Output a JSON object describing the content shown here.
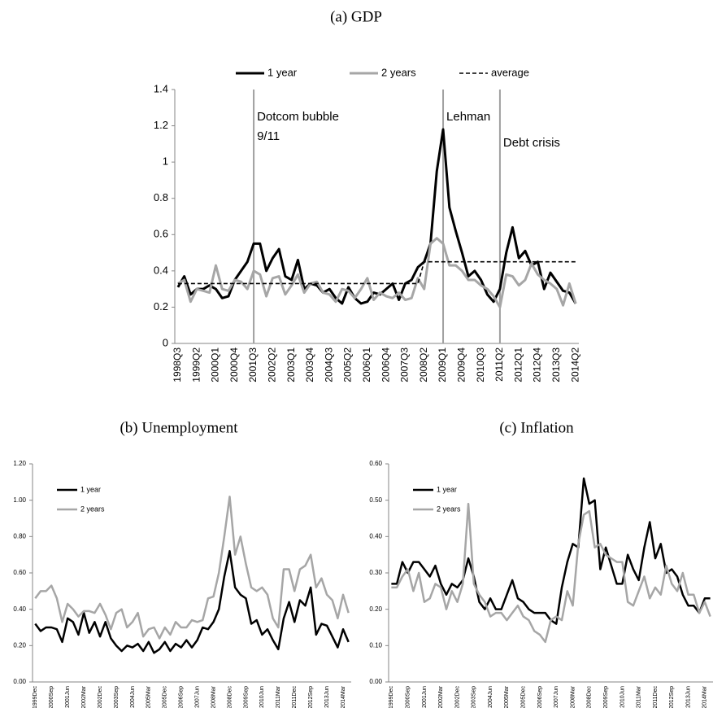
{
  "chart_data": [
    {
      "type": "line",
      "title": "(a) GDP",
      "legend": "top",
      "categories": [
        "1998Q3",
        null,
        null,
        "1999Q2",
        null,
        null,
        "2000Q1",
        null,
        null,
        "2000Q4",
        null,
        null,
        "2001Q3",
        null,
        null,
        "2002Q2",
        null,
        null,
        "2003Q1",
        null,
        null,
        "2003Q4",
        null,
        null,
        "2004Q3",
        null,
        null,
        "2005Q2",
        null,
        null,
        "2006Q1",
        null,
        null,
        "2006Q4",
        null,
        null,
        "2007Q3",
        null,
        null,
        "2008Q2",
        null,
        null,
        "2009Q1",
        null,
        null,
        "2009Q4",
        null,
        null,
        "2010Q3",
        null,
        null,
        "2011Q2",
        null,
        null,
        "2012Q1",
        null,
        null,
        "2012Q4",
        null,
        null,
        "2013Q3",
        null,
        null,
        "2014Q2"
      ],
      "series": [
        {
          "name": "1 year",
          "color": "#000000",
          "values": [
            0.31,
            0.37,
            0.27,
            0.3,
            0.3,
            0.32,
            0.3,
            0.25,
            0.26,
            0.35,
            0.4,
            0.45,
            0.55,
            0.55,
            0.4,
            0.47,
            0.52,
            0.37,
            0.35,
            0.46,
            0.3,
            0.33,
            0.32,
            0.28,
            0.3,
            0.25,
            0.22,
            0.31,
            0.25,
            0.22,
            0.23,
            0.28,
            0.27,
            0.3,
            0.33,
            0.24,
            0.33,
            0.35,
            0.42,
            0.45,
            0.55,
            0.95,
            1.18,
            0.75,
            0.62,
            0.5,
            0.37,
            0.4,
            0.35,
            0.27,
            0.23,
            0.3,
            0.5,
            0.64,
            0.47,
            0.51,
            0.43,
            0.45,
            0.3,
            0.39,
            0.34,
            0.29,
            0.28,
            0.22
          ]
        },
        {
          "name": "2 years",
          "color": "#a6a6a6",
          "values": [
            0.33,
            0.35,
            0.23,
            0.3,
            0.29,
            0.28,
            0.43,
            0.3,
            0.29,
            0.35,
            0.34,
            0.3,
            0.4,
            0.38,
            0.26,
            0.36,
            0.37,
            0.27,
            0.32,
            0.38,
            0.28,
            0.33,
            0.34,
            0.28,
            0.27,
            0.23,
            0.3,
            0.29,
            0.25,
            0.3,
            0.36,
            0.24,
            0.28,
            0.26,
            0.25,
            0.28,
            0.24,
            0.25,
            0.36,
            0.3,
            0.55,
            0.58,
            0.55,
            0.43,
            0.43,
            0.4,
            0.35,
            0.35,
            0.32,
            0.3,
            0.26,
            0.2,
            0.38,
            0.37,
            0.32,
            0.35,
            0.44,
            0.38,
            0.35,
            0.33,
            0.3,
            0.21,
            0.33,
            0.22
          ]
        },
        {
          "name": "average",
          "color": "#000000",
          "dash": true,
          "values": [
            0.33,
            0.33,
            0.33,
            0.33,
            0.33,
            0.33,
            0.33,
            0.33,
            0.33,
            0.33,
            0.33,
            0.33,
            0.33,
            0.33,
            0.33,
            0.33,
            0.33,
            0.33,
            0.33,
            0.33,
            0.33,
            0.33,
            0.33,
            0.33,
            0.33,
            0.33,
            0.33,
            0.33,
            0.33,
            0.33,
            0.33,
            0.33,
            0.33,
            0.33,
            0.33,
            0.33,
            0.33,
            0.33,
            0.33,
            0.45,
            0.45,
            0.45,
            0.45,
            0.45,
            0.45,
            0.45,
            0.45,
            0.45,
            0.45,
            0.45,
            0.45,
            0.45,
            0.45,
            0.45,
            0.45,
            0.45,
            0.45,
            0.45,
            0.45,
            0.45,
            0.45,
            0.45,
            0.45,
            0.45
          ]
        }
      ],
      "events": [
        {
          "x": "2001Q3",
          "label": [
            "Dotcom bubble",
            "9/11"
          ]
        },
        {
          "x": "2009Q1",
          "label": [
            "Lehman"
          ]
        },
        {
          "x": "2011Q2",
          "label": [
            "Debt crisis"
          ]
        }
      ],
      "ylim": [
        0,
        1.4
      ],
      "yticks": [
        0,
        0.2,
        0.4,
        0.6,
        0.8,
        1,
        1.2,
        1.4
      ]
    },
    {
      "type": "line",
      "title": "(b) Unemployment",
      "legend": "upper left",
      "categories": [
        "1999Dec",
        null,
        null,
        "2000Sep",
        null,
        null,
        "2001Jun",
        null,
        null,
        "2002Mar",
        null,
        null,
        "2002Dec",
        null,
        null,
        "2003Sep",
        null,
        null,
        "2004Jun",
        null,
        null,
        "2005Mar",
        null,
        null,
        "2005Dec",
        null,
        null,
        "2006Sep",
        null,
        null,
        "2007Jun",
        null,
        null,
        "2008Mar",
        null,
        null,
        "2008Dec",
        null,
        null,
        "2009Sep",
        null,
        null,
        "2010Jun",
        null,
        null,
        "2011Mar",
        null,
        null,
        "2011Dec",
        null,
        null,
        "2012Sep",
        null,
        null,
        "2013Jun",
        null,
        null,
        "2014Mar",
        null
      ],
      "series": [
        {
          "name": "1 year",
          "color": "#000000",
          "values": [
            0.32,
            0.28,
            0.3,
            0.3,
            0.29,
            0.22,
            0.35,
            0.33,
            0.26,
            0.38,
            0.27,
            0.33,
            0.25,
            0.33,
            0.24,
            0.2,
            0.17,
            0.2,
            0.19,
            0.21,
            0.17,
            0.22,
            0.16,
            0.18,
            0.22,
            0.17,
            0.21,
            0.19,
            0.23,
            0.19,
            0.23,
            0.3,
            0.29,
            0.33,
            0.4,
            0.58,
            0.72,
            0.52,
            0.48,
            0.46,
            0.32,
            0.34,
            0.26,
            0.29,
            0.23,
            0.18,
            0.35,
            0.44,
            0.33,
            0.45,
            0.42,
            0.52,
            0.26,
            0.32,
            0.31,
            0.25,
            0.19,
            0.29,
            0.22
          ]
        },
        {
          "name": "2 years",
          "color": "#a6a6a6",
          "values": [
            0.46,
            0.5,
            0.5,
            0.53,
            0.46,
            0.33,
            0.43,
            0.4,
            0.36,
            0.39,
            0.39,
            0.38,
            0.43,
            0.37,
            0.29,
            0.38,
            0.4,
            0.3,
            0.33,
            0.38,
            0.25,
            0.29,
            0.3,
            0.24,
            0.3,
            0.26,
            0.33,
            0.3,
            0.3,
            0.34,
            0.33,
            0.34,
            0.46,
            0.47,
            0.6,
            0.8,
            1.02,
            0.7,
            0.8,
            0.65,
            0.52,
            0.5,
            0.52,
            0.48,
            0.35,
            0.3,
            0.62,
            0.62,
            0.5,
            0.62,
            0.64,
            0.7,
            0.52,
            0.57,
            0.48,
            0.45,
            0.35,
            0.48,
            0.38
          ]
        }
      ],
      "ylim": [
        0,
        1.2
      ],
      "yticks": [
        {
          "value": 0,
          "label": "0.00"
        },
        {
          "value": 0.2,
          "label": "0.20"
        },
        {
          "value": 0.4,
          "label": "0.40"
        },
        {
          "value": 0.6,
          "label": "0.60"
        },
        {
          "value": 0.8,
          "label": "0.80"
        },
        {
          "value": 1,
          "label": "1.00"
        },
        {
          "value": 1.2,
          "label": "1.20"
        }
      ]
    },
    {
      "type": "line",
      "title": "(c) Inflation",
      "legend": "upper left",
      "categories": [
        "1999Dec",
        null,
        null,
        "2000Sep",
        null,
        null,
        "2001Jun",
        null,
        null,
        "2002Mar",
        null,
        null,
        "2002Dec",
        null,
        null,
        "2003Sep",
        null,
        null,
        "2004Jun",
        null,
        null,
        "2005Mar",
        null,
        null,
        "2005Dec",
        null,
        null,
        "2006Sep",
        null,
        null,
        "2007Jun",
        null,
        null,
        "2008Mar",
        null,
        null,
        "2008Dec",
        null,
        null,
        "2009Sep",
        null,
        null,
        "2010Jun",
        null,
        null,
        "2011Mar",
        null,
        null,
        "2011Dec",
        null,
        null,
        "2012Sep",
        null,
        null,
        "2013Jun",
        null,
        null,
        "2014Mar",
        null
      ],
      "series": [
        {
          "name": "1 year",
          "color": "#000000",
          "values": [
            0.27,
            0.27,
            0.33,
            0.3,
            0.33,
            0.33,
            0.31,
            0.29,
            0.32,
            0.27,
            0.24,
            0.27,
            0.26,
            0.28,
            0.34,
            0.29,
            0.22,
            0.2,
            0.23,
            0.2,
            0.2,
            0.24,
            0.28,
            0.23,
            0.22,
            0.2,
            0.19,
            0.19,
            0.19,
            0.17,
            0.16,
            0.26,
            0.33,
            0.38,
            0.37,
            0.56,
            0.49,
            0.5,
            0.31,
            0.37,
            0.32,
            0.27,
            0.27,
            0.35,
            0.31,
            0.28,
            0.37,
            0.44,
            0.34,
            0.38,
            0.3,
            0.31,
            0.29,
            0.24,
            0.21,
            0.21,
            0.19,
            0.23,
            0.23
          ]
        },
        {
          "name": "2 years",
          "color": "#a6a6a6",
          "values": [
            0.26,
            0.26,
            0.29,
            0.31,
            0.25,
            0.3,
            0.22,
            0.23,
            0.27,
            0.26,
            0.2,
            0.25,
            0.22,
            0.27,
            0.49,
            0.27,
            0.24,
            0.22,
            0.18,
            0.19,
            0.19,
            0.17,
            0.19,
            0.21,
            0.18,
            0.17,
            0.14,
            0.13,
            0.11,
            0.17,
            0.18,
            0.17,
            0.25,
            0.21,
            0.38,
            0.46,
            0.47,
            0.37,
            0.38,
            0.35,
            0.34,
            0.33,
            0.33,
            0.22,
            0.21,
            0.25,
            0.29,
            0.23,
            0.26,
            0.24,
            0.32,
            0.27,
            0.25,
            0.3,
            0.24,
            0.24,
            0.19,
            0.22,
            0.18
          ]
        }
      ],
      "ylim": [
        0,
        0.6
      ],
      "yticks": [
        {
          "value": 0,
          "label": "0.00"
        },
        {
          "value": 0.1,
          "label": "0.10"
        },
        {
          "value": 0.2,
          "label": "0.20"
        },
        {
          "value": 0.3,
          "label": "0.30"
        },
        {
          "value": 0.4,
          "label": "0.40"
        },
        {
          "value": 0.5,
          "label": "0.50"
        },
        {
          "value": 0.6,
          "label": "0.60"
        }
      ]
    }
  ]
}
